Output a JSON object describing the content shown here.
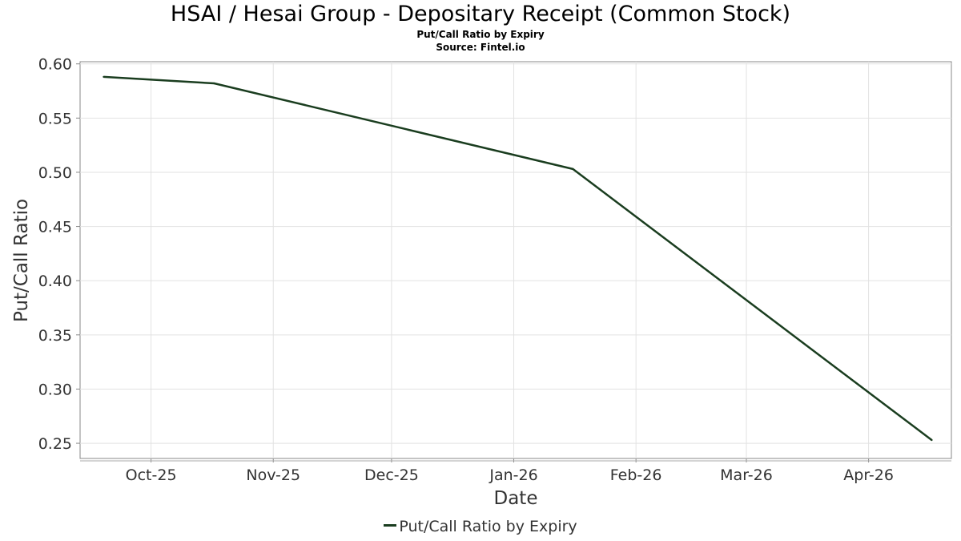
{
  "chart_data": {
    "type": "line",
    "title": "HSAI / Hesai Group - Depositary Receipt (Common Stock)",
    "subtitle": "Put/Call Ratio by Expiry",
    "source": "Source: Fintel.io",
    "xlabel": "Date",
    "ylabel": "Put/Call Ratio",
    "x_ticks": [
      {
        "label": "Oct-25",
        "date": "2025-10-01"
      },
      {
        "label": "Nov-25",
        "date": "2025-11-01"
      },
      {
        "label": "Dec-25",
        "date": "2025-12-01"
      },
      {
        "label": "Jan-26",
        "date": "2026-01-01"
      },
      {
        "label": "Feb-26",
        "date": "2026-02-01"
      },
      {
        "label": "Mar-26",
        "date": "2026-03-01"
      },
      {
        "label": "Apr-26",
        "date": "2026-04-01"
      }
    ],
    "y_ticks": [
      "0.60",
      "0.55",
      "0.50",
      "0.45",
      "0.40",
      "0.35",
      "0.30",
      "0.25"
    ],
    "xlim": [
      "2025-09-13",
      "2026-04-22"
    ],
    "ylim": [
      0.236,
      0.602
    ],
    "grid": true,
    "legend_position": "bottom-center",
    "series": [
      {
        "name": "Put/Call Ratio by Expiry",
        "color": "#1a3d1f",
        "points": [
          {
            "x": "2025-09-19",
            "y": 0.588
          },
          {
            "x": "2025-10-17",
            "y": 0.582
          },
          {
            "x": "2026-01-16",
            "y": 0.503
          },
          {
            "x": "2026-04-17",
            "y": 0.253
          }
        ]
      }
    ]
  }
}
